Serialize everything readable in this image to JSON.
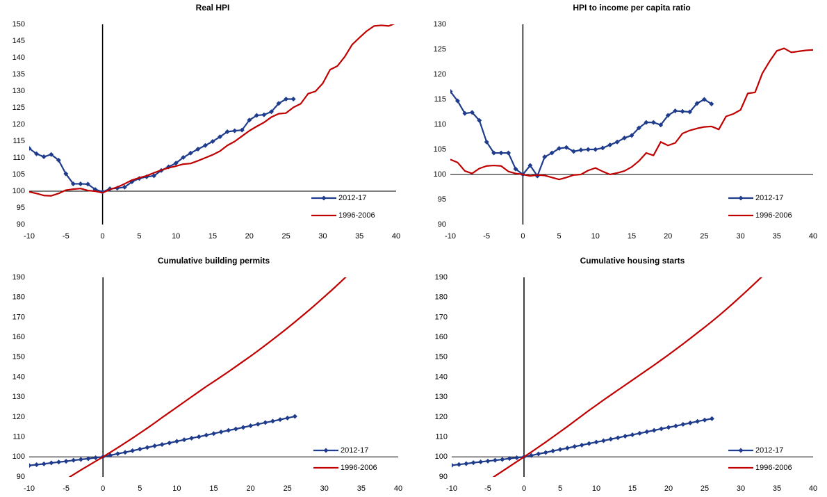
{
  "chart_data": [
    {
      "type": "line",
      "title": "Real HPI",
      "x": [
        -10,
        -9,
        -8,
        -7,
        -6,
        -5,
        -4,
        -3,
        -2,
        -1,
        0,
        1,
        2,
        3,
        4,
        5,
        6,
        7,
        8,
        9,
        10,
        11,
        12,
        13,
        14,
        15,
        16,
        17,
        18,
        19,
        20,
        21,
        22,
        23,
        24,
        25,
        26,
        27,
        28,
        29,
        30,
        31,
        32,
        33,
        34,
        35,
        36,
        37,
        38,
        39,
        40
      ],
      "xlim": [
        -10,
        40
      ],
      "xticks": [
        -10,
        -5,
        0,
        5,
        10,
        15,
        20,
        25,
        30,
        35,
        40
      ],
      "ylim": [
        90,
        150
      ],
      "yticks": [
        90,
        95,
        100,
        105,
        110,
        115,
        120,
        125,
        130,
        135,
        140,
        145,
        150
      ],
      "reference_lines": {
        "x": 0,
        "y": 100
      },
      "legend": "lower right",
      "series": [
        {
          "name": "2012-17",
          "color": "#1f3c8c",
          "marker": "diamond",
          "values": [
            112.8,
            111.2,
            110.3,
            111,
            109.3,
            105.2,
            102.2,
            102.2,
            102.1,
            100.5,
            99.8,
            100.7,
            100.9,
            101.2,
            102.8,
            103.8,
            104.3,
            104.6,
            106.2,
            107.3,
            108.4,
            110.1,
            111.4,
            112.6,
            113.7,
            114.9,
            116.3,
            117.8,
            118.1,
            118.3,
            121.3,
            122.7,
            122.9,
            123.8,
            126.3,
            127.6,
            127.6,
            null,
            null,
            null,
            null,
            null,
            null,
            null,
            null,
            null,
            null,
            null,
            null,
            null,
            null
          ]
        },
        {
          "name": "1996-2006",
          "color": "#c00000",
          "values": [
            99.8,
            99.3,
            98.7,
            98.6,
            99.3,
            100.3,
            100.6,
            100.8,
            100.2,
            100,
            99.5,
            100.5,
            101.2,
            102.2,
            103.3,
            104,
            104.6,
            105.5,
            106.3,
            107,
            107.5,
            108.1,
            108.3,
            109.1,
            110,
            110.9,
            112,
            113.7,
            114.9,
            116.5,
            118.1,
            119.4,
            120.6,
            122.2,
            123.2,
            123.4,
            125.1,
            126.2,
            129.2,
            129.9,
            132.3,
            136.4,
            137.5,
            140.3,
            143.9,
            146,
            148,
            149.5,
            149.7,
            149.5,
            150.4
          ]
        }
      ]
    },
    {
      "type": "line",
      "title": "HPI to income per capita ratio",
      "x": [
        -10,
        -9,
        -8,
        -7,
        -6,
        -5,
        -4,
        -3,
        -2,
        -1,
        0,
        1,
        2,
        3,
        4,
        5,
        6,
        7,
        8,
        9,
        10,
        11,
        12,
        13,
        14,
        15,
        16,
        17,
        18,
        19,
        20,
        21,
        22,
        23,
        24,
        25,
        26,
        27,
        28,
        29,
        30,
        31,
        32,
        33,
        34,
        35,
        36,
        37,
        38,
        39,
        40
      ],
      "xlim": [
        -10,
        40
      ],
      "xticks": [
        -10,
        -5,
        0,
        5,
        10,
        15,
        20,
        25,
        30,
        35,
        40
      ],
      "ylim": [
        90,
        130
      ],
      "yticks": [
        90,
        95,
        100,
        105,
        110,
        115,
        120,
        125,
        130
      ],
      "reference_lines": {
        "x": 0,
        "y": 100
      },
      "legend": "lower right",
      "series": [
        {
          "name": "2012-17",
          "color": "#1f3c8c",
          "marker": "diamond",
          "values": [
            116.6,
            114.7,
            112.2,
            112.4,
            110.8,
            106.5,
            104.3,
            104.3,
            104.3,
            101.1,
            100,
            101.8,
            99.7,
            103.5,
            104.3,
            105.2,
            105.4,
            104.6,
            104.9,
            105,
            105,
            105.3,
            105.9,
            106.5,
            107.3,
            107.8,
            109.3,
            110.4,
            110.4,
            109.9,
            111.8,
            112.7,
            112.6,
            112.5,
            114.2,
            115,
            114.1,
            null,
            null,
            null,
            null,
            null,
            null,
            null,
            null,
            null,
            null,
            null,
            null,
            null,
            null
          ]
        },
        {
          "name": "1996-2006",
          "color": "#c00000",
          "values": [
            103,
            102.4,
            100.7,
            100.2,
            101.2,
            101.7,
            101.8,
            101.7,
            100.6,
            100.2,
            100,
            99.7,
            99.9,
            99.8,
            99.4,
            99,
            99.4,
            99.9,
            100,
            100.8,
            101.3,
            100.6,
            100,
            100.3,
            100.7,
            101.5,
            102.7,
            104.3,
            103.8,
            106.5,
            105.8,
            106.3,
            108.2,
            108.8,
            109.2,
            109.5,
            109.6,
            109,
            111.6,
            112.1,
            112.9,
            116.2,
            116.4,
            120.2,
            122.6,
            124.7,
            125.2,
            124.4,
            124.6,
            124.8,
            124.9
          ]
        }
      ]
    },
    {
      "type": "line",
      "title": "Cumulative building permits",
      "x": [
        -10,
        -9,
        -8,
        -7,
        -6,
        -5,
        -4,
        -3,
        -2,
        -1,
        0,
        1,
        2,
        3,
        4,
        5,
        6,
        7,
        8,
        9,
        10,
        11,
        12,
        13,
        14,
        15,
        16,
        17,
        18,
        19,
        20,
        21,
        22,
        23,
        24,
        25,
        26,
        27,
        28,
        29,
        30,
        31,
        32,
        33,
        34,
        35,
        36,
        37,
        38,
        39,
        40
      ],
      "xlim": [
        -10,
        40
      ],
      "xticks": [
        -10,
        -5,
        0,
        5,
        10,
        15,
        20,
        25,
        30,
        35,
        40
      ],
      "ylim": [
        90,
        190
      ],
      "yticks": [
        90,
        100,
        110,
        120,
        130,
        140,
        150,
        160,
        170,
        180,
        190
      ],
      "reference_lines": {
        "x": 0,
        "y": 100
      },
      "legend": "lower right",
      "series": [
        {
          "name": "2012-17",
          "color": "#1f3c8c",
          "marker": "diamond",
          "values": [
            95.7,
            96.1,
            96.5,
            97,
            97.4,
            97.8,
            98.3,
            98.7,
            99.1,
            99.6,
            100,
            100.8,
            101.6,
            102.3,
            103.1,
            103.9,
            104.7,
            105.5,
            106.2,
            107,
            107.8,
            108.6,
            109.4,
            110.1,
            110.9,
            111.7,
            112.5,
            113.3,
            114,
            114.8,
            115.6,
            116.4,
            117.2,
            117.9,
            118.7,
            119.5,
            120.3,
            null,
            null,
            null,
            null,
            null,
            null,
            null,
            null,
            null,
            null,
            null,
            null,
            null,
            null
          ]
        },
        {
          "name": "1996-2006",
          "color": "#c00000",
          "values": [
            null,
            null,
            null,
            null,
            null,
            88.8,
            91.1,
            93.4,
            95.6,
            97.8,
            100,
            102.3,
            104.6,
            107,
            109.4,
            111.9,
            114.4,
            117,
            119.7,
            122.3,
            124.9,
            127.5,
            130.1,
            132.7,
            135.3,
            137.7,
            140.2,
            142.7,
            145.3,
            147.9,
            150.5,
            153.2,
            156,
            158.8,
            161.7,
            164.6,
            167.6,
            170.7,
            173.8,
            177,
            180.3,
            183.6,
            187,
            190.5,
            null,
            null,
            null,
            null,
            null,
            null,
            null
          ]
        }
      ]
    },
    {
      "type": "line",
      "title": "Cumulative housing starts",
      "x": [
        -10,
        -9,
        -8,
        -7,
        -6,
        -5,
        -4,
        -3,
        -2,
        -1,
        0,
        1,
        2,
        3,
        4,
        5,
        6,
        7,
        8,
        9,
        10,
        11,
        12,
        13,
        14,
        15,
        16,
        17,
        18,
        19,
        20,
        21,
        22,
        23,
        24,
        25,
        26,
        27,
        28,
        29,
        30,
        31,
        32,
        33,
        34,
        35,
        36,
        37,
        38,
        39,
        40
      ],
      "xlim": [
        -10,
        40
      ],
      "xticks": [
        -10,
        -5,
        0,
        5,
        10,
        15,
        20,
        25,
        30,
        35,
        40
      ],
      "ylim": [
        90,
        190
      ],
      "yticks": [
        90,
        100,
        110,
        120,
        130,
        140,
        150,
        160,
        170,
        180,
        190
      ],
      "reference_lines": {
        "x": 0,
        "y": 100
      },
      "legend": "lower right",
      "series": [
        {
          "name": "2012-17",
          "color": "#1f3c8c",
          "marker": "diamond",
          "values": [
            95.8,
            96.2,
            96.6,
            97.1,
            97.5,
            97.9,
            98.3,
            98.7,
            99.2,
            99.6,
            100,
            100.7,
            101.5,
            102.2,
            103,
            103.7,
            104.4,
            105.2,
            105.9,
            106.7,
            107.4,
            108.1,
            108.9,
            109.6,
            110.4,
            111.1,
            111.8,
            112.6,
            113.3,
            114.1,
            114.8,
            115.5,
            116.3,
            117,
            117.8,
            118.5,
            119.2,
            null,
            null,
            null,
            null,
            null,
            null,
            null,
            null,
            null,
            null,
            null,
            null,
            null,
            null
          ]
        },
        {
          "name": "1996-2006",
          "color": "#c00000",
          "values": [
            null,
            null,
            null,
            null,
            null,
            88,
            90.4,
            92.8,
            95.2,
            97.6,
            100,
            102.4,
            104.9,
            107.4,
            110,
            112.6,
            115.2,
            117.9,
            120.6,
            123.3,
            125.9,
            128.5,
            131,
            133.5,
            136,
            138.5,
            141,
            143.5,
            146,
            148.6,
            151.2,
            153.9,
            156.6,
            159.4,
            162.2,
            165,
            167.9,
            170.9,
            174,
            177.2,
            180.5,
            183.8,
            187.2,
            190.6,
            null,
            null,
            null,
            null,
            null,
            null,
            null
          ]
        }
      ]
    }
  ]
}
